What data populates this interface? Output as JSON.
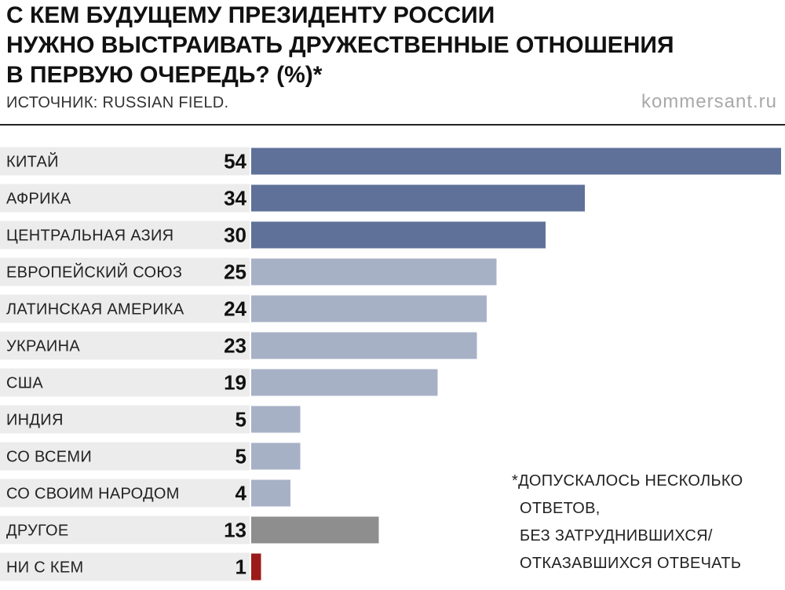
{
  "title_lines": [
    "С КЕМ БУДУЩЕМУ ПРЕЗИДЕНТУ РОССИИ",
    "НУЖНО ВЫСТРАИВАТЬ ДРУЖЕСТВЕННЫЕ ОТНОШЕНИЯ",
    "В ПЕРВУЮ ОЧЕРЕДЬ? (%)*"
  ],
  "source": "ИСТОЧНИК: RUSSIAN FIELD.",
  "watermark": "kommersant.ru",
  "footnote_lines": [
    "*ДОПУСКАЛОСЬ НЕСКОЛЬКО",
    "ОТВЕТОВ,",
    "БЕЗ ЗАТРУДНИВШИХСЯ/",
    "ОТКАЗАВШИХСЯ ОТВЕЧАТЬ"
  ],
  "colors": {
    "dark_blue": "#5f7199",
    "light_blue": "#a7b1c6",
    "gray": "#8e8e8e",
    "red": "#9b1b1b",
    "label_band": "#ececec"
  },
  "chart_data": {
    "type": "bar",
    "orientation": "horizontal",
    "title": "С КЕМ БУДУЩЕМУ ПРЕЗИДЕНТУ РОССИИ НУЖНО ВЫСТРАИВАТЬ ДРУЖЕСТВЕННЫЕ ОТНОШЕНИЯ В ПЕРВУЮ ОЧЕРЕДЬ? (%)*",
    "categories": [
      "КИТАЙ",
      "АФРИКА",
      "ЦЕНТРАЛЬНАЯ АЗИЯ",
      "ЕВРОПЕЙСКИЙ СОЮЗ",
      "ЛАТИНСКАЯ АМЕРИКА",
      "УКРАИНА",
      "США",
      "ИНДИЯ",
      "СО ВСЕМИ",
      "СО СВОИМ НАРОДОМ",
      "ДРУГОЕ",
      "НИ С КЕМ"
    ],
    "values": [
      54,
      34,
      30,
      25,
      24,
      23,
      19,
      5,
      5,
      4,
      13,
      1
    ],
    "bar_colors": [
      "#5f7199",
      "#5f7199",
      "#5f7199",
      "#a7b1c6",
      "#a7b1c6",
      "#a7b1c6",
      "#a7b1c6",
      "#a7b1c6",
      "#a7b1c6",
      "#a7b1c6",
      "#8e8e8e",
      "#9b1b1b"
    ],
    "xlim": [
      0,
      54
    ],
    "grid": false,
    "legend": "none"
  }
}
